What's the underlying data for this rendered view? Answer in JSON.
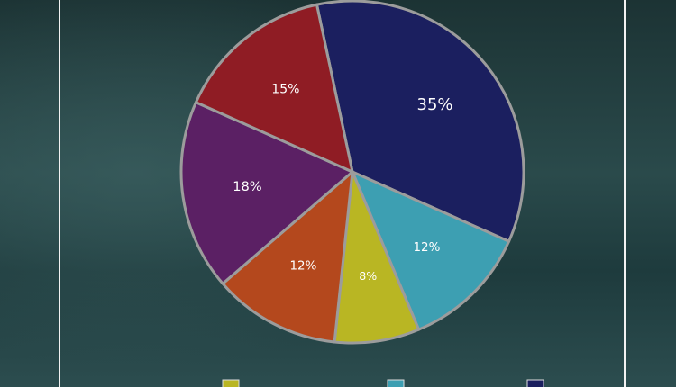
{
  "chart_data": {
    "type": "pie",
    "values": [
      35,
      12,
      8,
      12,
      18,
      15
    ],
    "value_labels": [
      "35%",
      "12%",
      "8%",
      "12%",
      "18%",
      "15%"
    ],
    "colors": [
      "#1b1f5f",
      "#3d9fb2",
      "#b9b623",
      "#b4481d",
      "#5b2064",
      "#8f1c24"
    ]
  }
}
